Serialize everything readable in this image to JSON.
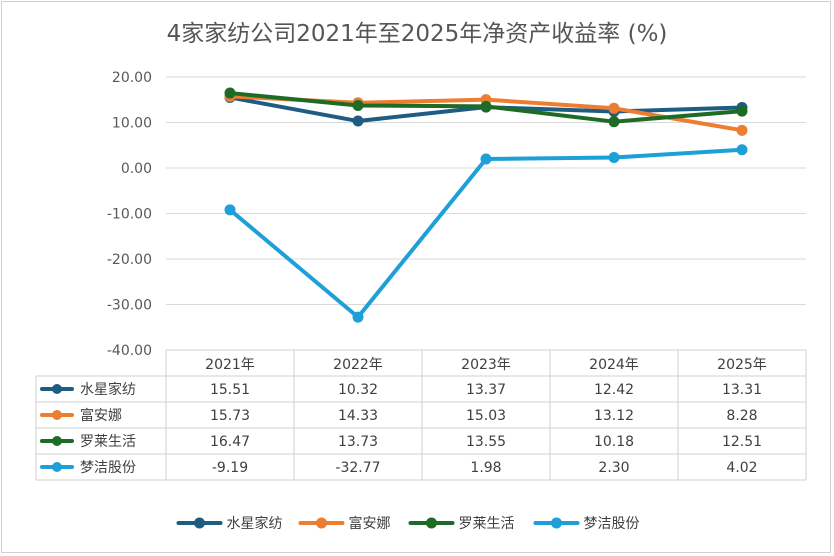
{
  "chart_data": {
    "type": "line",
    "title": "4家家纺公司2021年至2025年净资产收益率 (%)",
    "categories": [
      "2021年",
      "2022年",
      "2023年",
      "2024年",
      "2025年"
    ],
    "ylim": [
      -40,
      20
    ],
    "yticks": [
      "20.00",
      "10.00",
      "0.00",
      "-10.00",
      "-20.00",
      "-30.00",
      "-40.00"
    ],
    "grid": true,
    "legend_position": "bottom",
    "data_table": true,
    "series": [
      {
        "name": "水星家纺",
        "color": "#1f5c82",
        "values": [
          15.51,
          10.32,
          13.37,
          12.42,
          13.31
        ],
        "labels": [
          "15.51",
          "10.32",
          "13.37",
          "12.42",
          "13.31"
        ]
      },
      {
        "name": "富安娜",
        "color": "#ed7d31",
        "values": [
          15.73,
          14.33,
          15.03,
          13.12,
          8.28
        ],
        "labels": [
          "15.73",
          "14.33",
          "15.03",
          "13.12",
          "8.28"
        ]
      },
      {
        "name": "罗莱生活",
        "color": "#1e6b26",
        "values": [
          16.47,
          13.73,
          13.55,
          10.18,
          12.51
        ],
        "labels": [
          "16.47",
          "13.73",
          "13.55",
          "10.18",
          "12.51"
        ]
      },
      {
        "name": "梦洁股份",
        "color": "#1da0d8",
        "values": [
          -9.19,
          -32.77,
          1.98,
          2.3,
          4.02
        ],
        "labels": [
          "-9.19",
          "-32.77",
          "1.98",
          "2.30",
          "4.02"
        ]
      }
    ]
  }
}
